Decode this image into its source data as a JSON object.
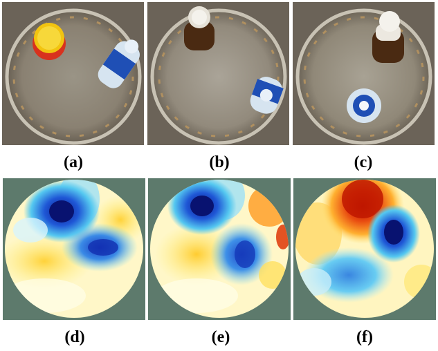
{
  "figure": {
    "captions": [
      "(a)",
      "(b)",
      "(c)",
      "(d)",
      "(e)",
      "(f)"
    ]
  },
  "photos": [
    {
      "scene": "tank with yellow cup and water bottle"
    },
    {
      "scene": "tank with brown bottle and water bottle"
    },
    {
      "scene": "tank with brown bottle and water bottle"
    }
  ],
  "maps": [
    {
      "scene": "reconstruction image"
    },
    {
      "scene": "reconstruction image"
    },
    {
      "scene": "reconstruction image"
    }
  ],
  "colors": {
    "map_background": "#5d7a6c",
    "deep_blue": "#0a1a8a",
    "light_blue": "#30c8ee",
    "yellow": "#fff07a",
    "red": "#d02000"
  }
}
